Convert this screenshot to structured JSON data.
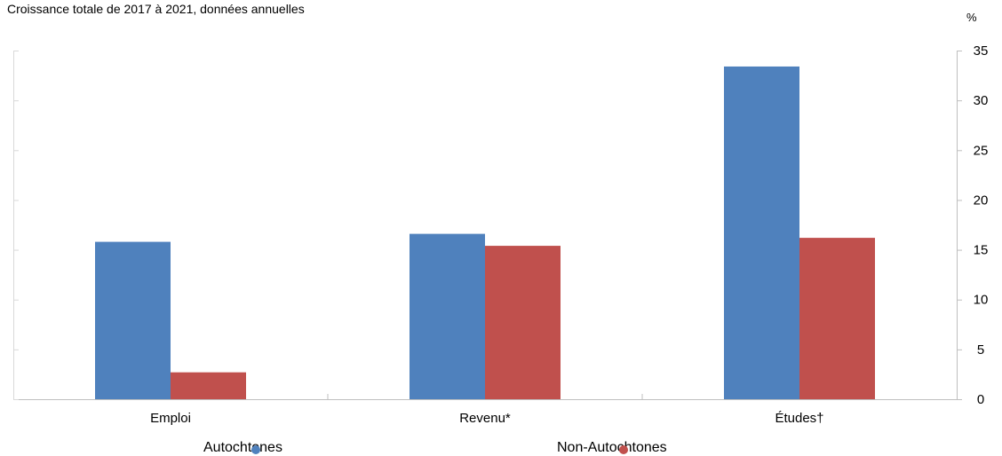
{
  "subtitle": "Croissance totale de 2017 à 2021, données annuelles",
  "unit": "%",
  "legend": {
    "series1": {
      "label": "Autochtones",
      "color": "#4F81BD"
    },
    "series2": {
      "label": "Non-Autochtones",
      "color": "#C0504D"
    }
  },
  "chart_data": {
    "type": "bar",
    "categories": [
      "Emploi",
      "Revenu*",
      "Études†"
    ],
    "series": [
      {
        "name": "Autochtones",
        "color": "#4F81BD",
        "values": [
          15.8,
          16.6,
          33.4
        ]
      },
      {
        "name": "Non-Autochtones",
        "color": "#C0504D",
        "values": [
          2.7,
          15.4,
          16.2
        ]
      }
    ],
    "ylim": [
      0,
      35
    ],
    "yticks": [
      0,
      5,
      10,
      15,
      20,
      25,
      30,
      35
    ],
    "y_axis_position": "right",
    "grid": false,
    "legend_position": "bottom"
  }
}
